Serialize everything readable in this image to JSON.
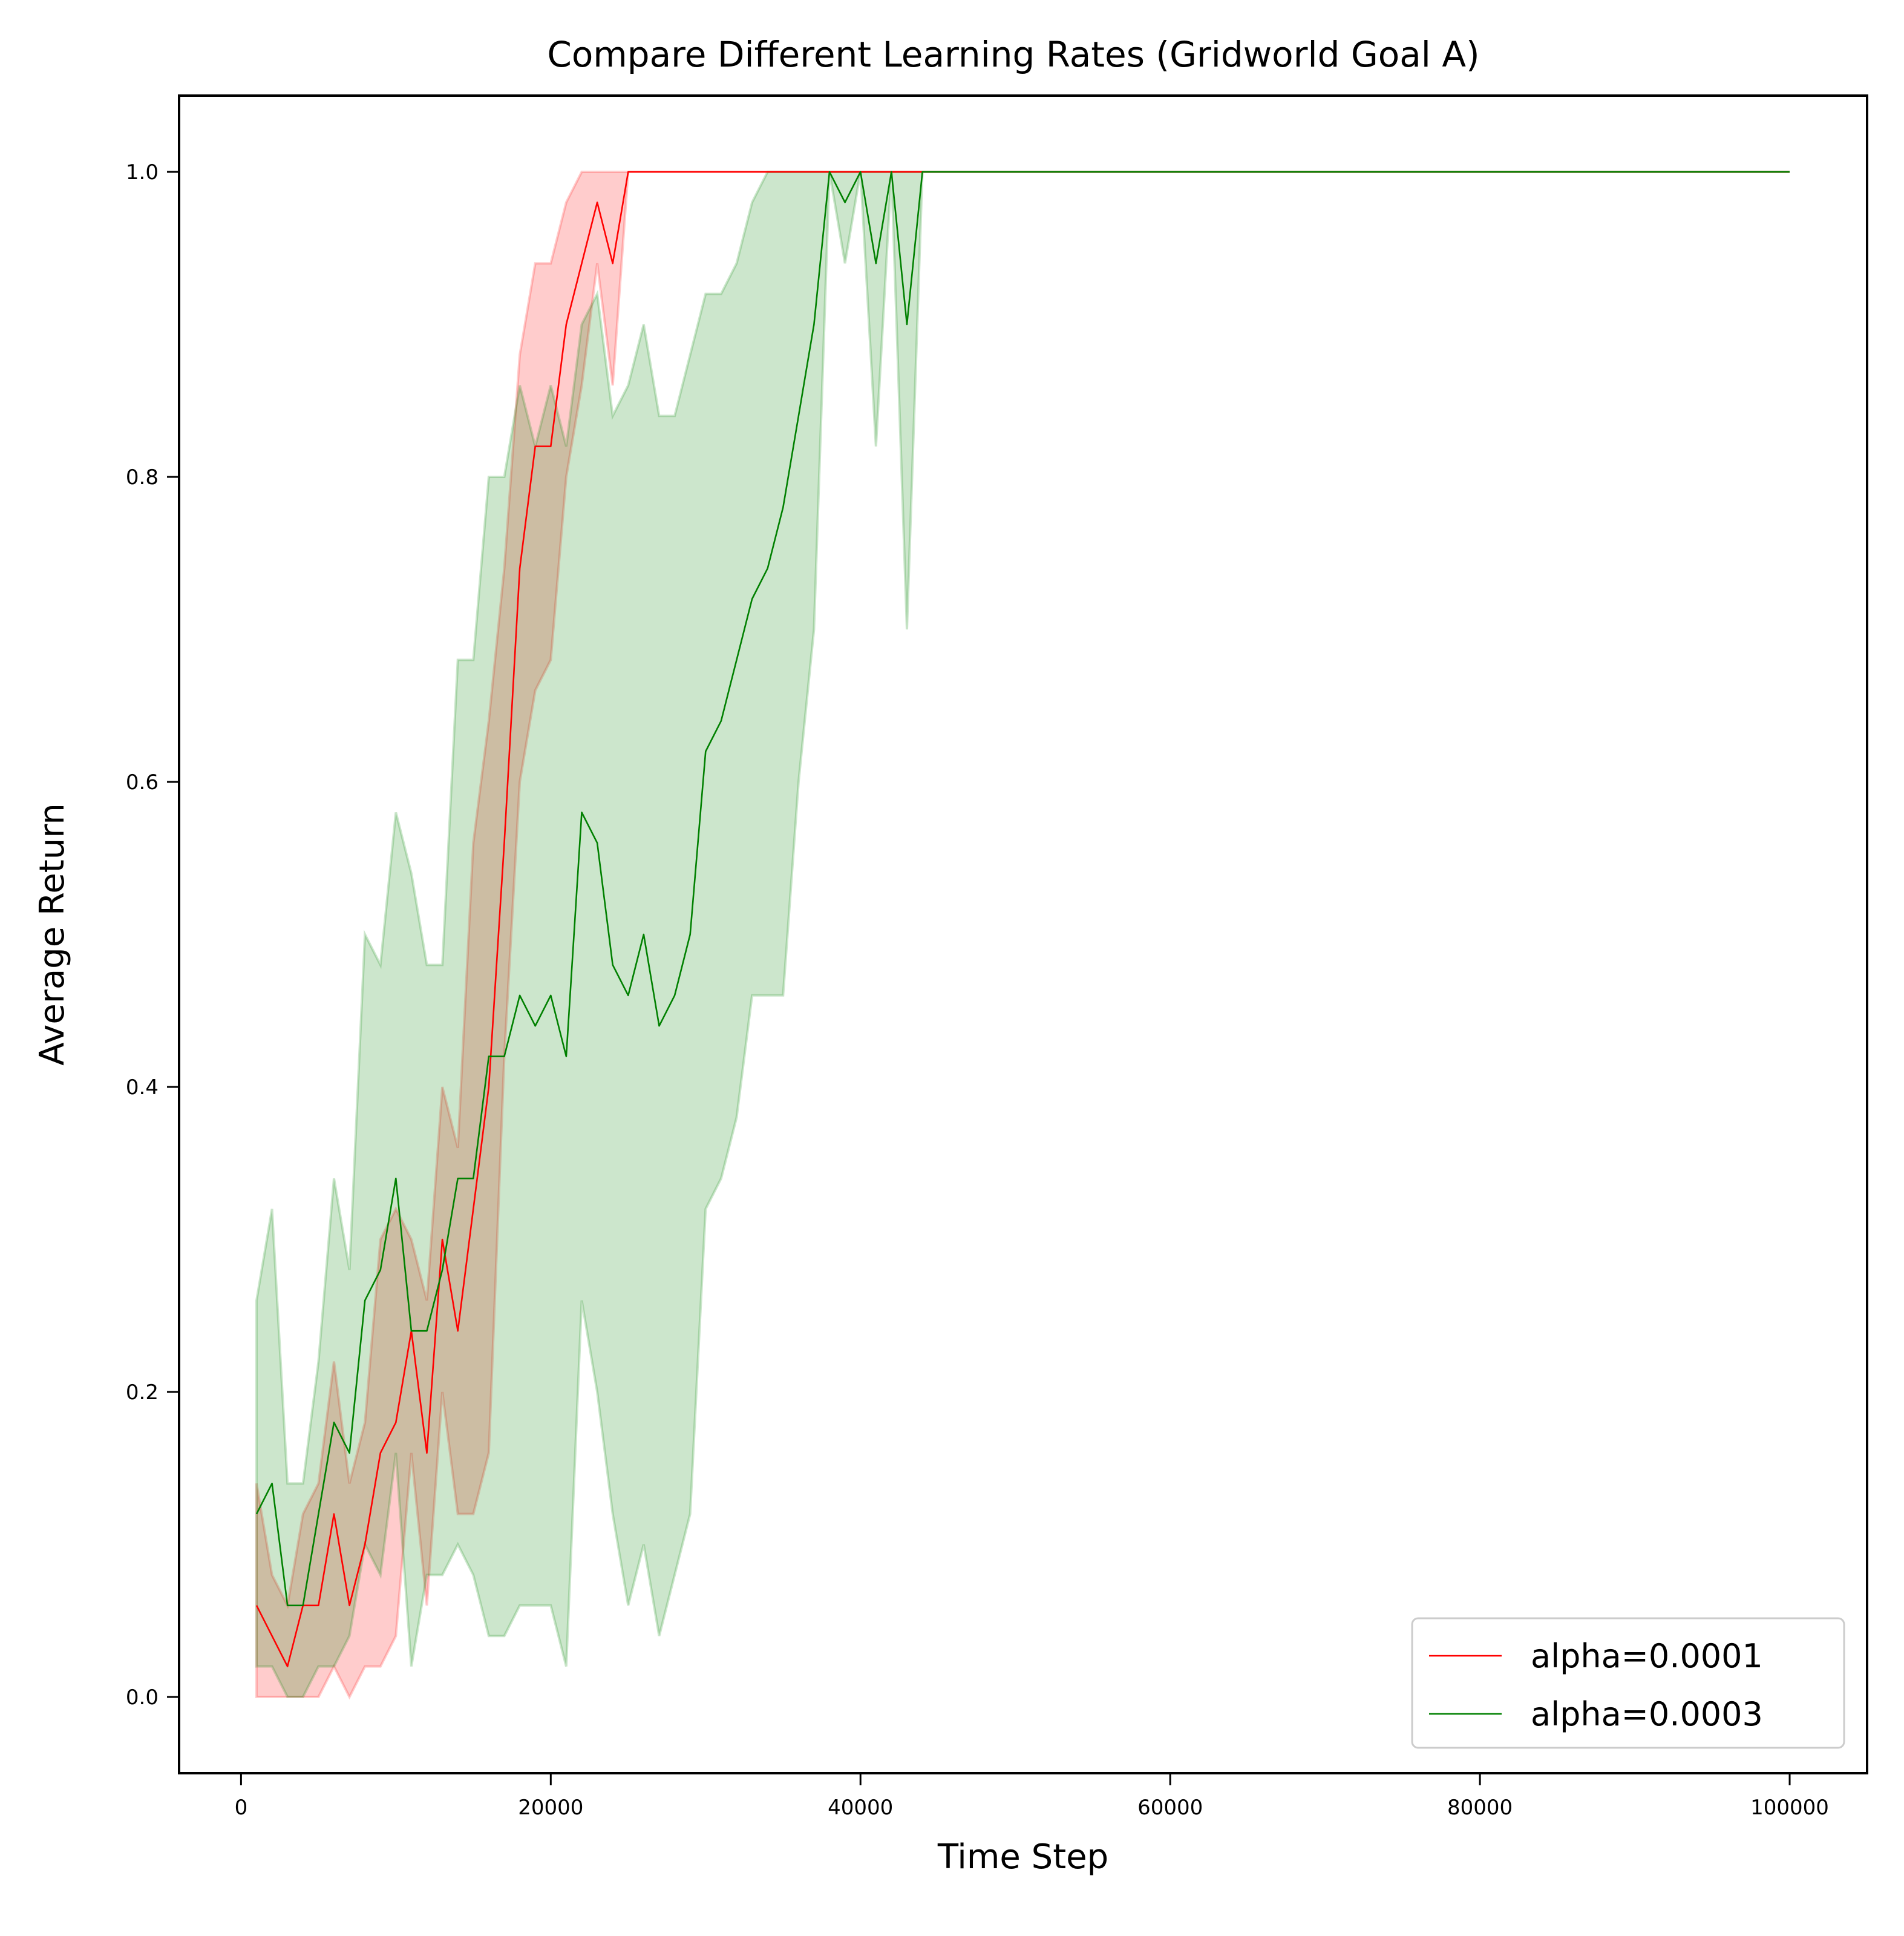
{
  "chart_data": {
    "type": "line",
    "title": "Compare Different Learning Rates (Gridworld Goal A)",
    "xlabel": "Time Step",
    "ylabel": "Average Return",
    "xlim": [
      -4000,
      105000
    ],
    "ylim": [
      -0.05,
      1.05
    ],
    "xticks": [
      0,
      20000,
      40000,
      60000,
      80000,
      100000
    ],
    "xtick_labels": [
      "0",
      "20000",
      "40000",
      "60000",
      "80000",
      "100000"
    ],
    "yticks": [
      0.0,
      0.2,
      0.4,
      0.6,
      0.8,
      1.0
    ],
    "ytick_labels": [
      "0.0",
      "0.2",
      "0.4",
      "0.6",
      "0.8",
      "1.0"
    ],
    "grid": false,
    "legend_position": "lower-right",
    "series": [
      {
        "name": "alpha=0.0001",
        "color": "#ff0000",
        "band_color": "#ff0000",
        "points": [
          [
            1000,
            0.06,
            0.0,
            0.14
          ],
          [
            2000,
            0.04,
            0.0,
            0.08
          ],
          [
            3000,
            0.02,
            0.0,
            0.06
          ],
          [
            4000,
            0.06,
            0.0,
            0.12
          ],
          [
            5000,
            0.06,
            0.0,
            0.14
          ],
          [
            6000,
            0.12,
            0.02,
            0.22
          ],
          [
            7000,
            0.06,
            0.0,
            0.14
          ],
          [
            8000,
            0.1,
            0.02,
            0.18
          ],
          [
            9000,
            0.16,
            0.02,
            0.3
          ],
          [
            10000,
            0.18,
            0.04,
            0.32
          ],
          [
            11000,
            0.24,
            0.16,
            0.3
          ],
          [
            12000,
            0.16,
            0.06,
            0.26
          ],
          [
            13000,
            0.3,
            0.2,
            0.4
          ],
          [
            14000,
            0.24,
            0.12,
            0.36
          ],
          [
            15000,
            0.32,
            0.12,
            0.56
          ],
          [
            16000,
            0.4,
            0.16,
            0.64
          ],
          [
            17000,
            0.56,
            0.42,
            0.74
          ],
          [
            18000,
            0.74,
            0.6,
            0.88
          ],
          [
            19000,
            0.82,
            0.66,
            0.94
          ],
          [
            20000,
            0.82,
            0.68,
            0.94
          ],
          [
            21000,
            0.9,
            0.8,
            0.98
          ],
          [
            22000,
            0.94,
            0.86,
            1.0
          ],
          [
            23000,
            0.98,
            0.94,
            1.0
          ],
          [
            24000,
            0.94,
            0.86,
            1.0
          ],
          [
            25000,
            1.0,
            1.0,
            1.0
          ],
          [
            30000,
            1.0,
            1.0,
            1.0
          ],
          [
            40000,
            1.0,
            1.0,
            1.0
          ],
          [
            50000,
            1.0,
            1.0,
            1.0
          ],
          [
            60000,
            1.0,
            1.0,
            1.0
          ],
          [
            70000,
            1.0,
            1.0,
            1.0
          ],
          [
            80000,
            1.0,
            1.0,
            1.0
          ],
          [
            90000,
            1.0,
            1.0,
            1.0
          ],
          [
            100000,
            1.0,
            1.0,
            1.0
          ]
        ]
      },
      {
        "name": "alpha=0.0003",
        "color": "#008000",
        "band_color": "#008000",
        "points": [
          [
            1000,
            0.12,
            0.02,
            0.26
          ],
          [
            2000,
            0.14,
            0.02,
            0.32
          ],
          [
            3000,
            0.06,
            0.0,
            0.14
          ],
          [
            4000,
            0.06,
            0.0,
            0.14
          ],
          [
            5000,
            0.12,
            0.02,
            0.22
          ],
          [
            6000,
            0.18,
            0.02,
            0.34
          ],
          [
            7000,
            0.16,
            0.04,
            0.28
          ],
          [
            8000,
            0.26,
            0.1,
            0.5
          ],
          [
            9000,
            0.28,
            0.08,
            0.48
          ],
          [
            10000,
            0.34,
            0.16,
            0.58
          ],
          [
            11000,
            0.24,
            0.02,
            0.54
          ],
          [
            12000,
            0.24,
            0.08,
            0.48
          ],
          [
            13000,
            0.28,
            0.08,
            0.48
          ],
          [
            14000,
            0.34,
            0.1,
            0.68
          ],
          [
            15000,
            0.34,
            0.08,
            0.68
          ],
          [
            16000,
            0.42,
            0.04,
            0.8
          ],
          [
            17000,
            0.42,
            0.04,
            0.8
          ],
          [
            18000,
            0.46,
            0.06,
            0.86
          ],
          [
            19000,
            0.44,
            0.06,
            0.82
          ],
          [
            20000,
            0.46,
            0.06,
            0.86
          ],
          [
            21000,
            0.42,
            0.02,
            0.82
          ],
          [
            22000,
            0.58,
            0.26,
            0.9
          ],
          [
            23000,
            0.56,
            0.2,
            0.92
          ],
          [
            24000,
            0.48,
            0.12,
            0.84
          ],
          [
            25000,
            0.46,
            0.06,
            0.86
          ],
          [
            26000,
            0.5,
            0.1,
            0.9
          ],
          [
            27000,
            0.44,
            0.04,
            0.84
          ],
          [
            28000,
            0.46,
            0.08,
            0.84
          ],
          [
            29000,
            0.5,
            0.12,
            0.88
          ],
          [
            30000,
            0.62,
            0.32,
            0.92
          ],
          [
            31000,
            0.64,
            0.34,
            0.92
          ],
          [
            32000,
            0.68,
            0.38,
            0.94
          ],
          [
            33000,
            0.72,
            0.46,
            0.98
          ],
          [
            34000,
            0.74,
            0.46,
            1.0
          ],
          [
            35000,
            0.78,
            0.46,
            1.0
          ],
          [
            36000,
            0.84,
            0.6,
            1.0
          ],
          [
            37000,
            0.9,
            0.7,
            1.0
          ],
          [
            38000,
            1.0,
            1.0,
            1.0
          ],
          [
            39000,
            0.98,
            0.94,
            1.0
          ],
          [
            40000,
            1.0,
            1.0,
            1.0
          ],
          [
            41000,
            0.94,
            0.82,
            1.0
          ],
          [
            42000,
            1.0,
            1.0,
            1.0
          ],
          [
            43000,
            0.9,
            0.7,
            1.0
          ],
          [
            44000,
            1.0,
            1.0,
            1.0
          ],
          [
            50000,
            1.0,
            1.0,
            1.0
          ],
          [
            60000,
            1.0,
            1.0,
            1.0
          ],
          [
            70000,
            1.0,
            1.0,
            1.0
          ],
          [
            80000,
            1.0,
            1.0,
            1.0
          ],
          [
            90000,
            1.0,
            1.0,
            1.0
          ],
          [
            100000,
            1.0,
            1.0,
            1.0
          ]
        ]
      }
    ]
  }
}
